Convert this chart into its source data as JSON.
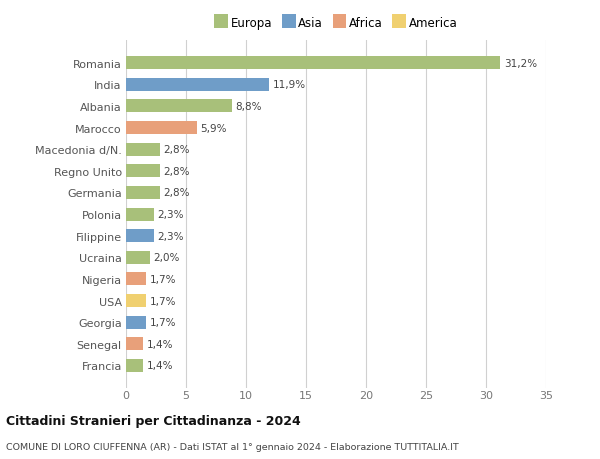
{
  "countries": [
    "Romania",
    "India",
    "Albania",
    "Marocco",
    "Macedonia d/N.",
    "Regno Unito",
    "Germania",
    "Polonia",
    "Filippine",
    "Ucraina",
    "Nigeria",
    "USA",
    "Georgia",
    "Senegal",
    "Francia"
  ],
  "values": [
    31.2,
    11.9,
    8.8,
    5.9,
    2.8,
    2.8,
    2.8,
    2.3,
    2.3,
    2.0,
    1.7,
    1.7,
    1.7,
    1.4,
    1.4
  ],
  "labels": [
    "31,2%",
    "11,9%",
    "8,8%",
    "5,9%",
    "2,8%",
    "2,8%",
    "2,8%",
    "2,3%",
    "2,3%",
    "2,0%",
    "1,7%",
    "1,7%",
    "1,7%",
    "1,4%",
    "1,4%"
  ],
  "continents": [
    "Europa",
    "Asia",
    "Europa",
    "Africa",
    "Europa",
    "Europa",
    "Europa",
    "Europa",
    "Asia",
    "Europa",
    "Africa",
    "America",
    "Asia",
    "Africa",
    "Europa"
  ],
  "colors": {
    "Europa": "#a8c07a",
    "Asia": "#6f9dc8",
    "Africa": "#e8a07a",
    "America": "#f0d070"
  },
  "legend_order": [
    "Europa",
    "Asia",
    "Africa",
    "America"
  ],
  "title": "Cittadini Stranieri per Cittadinanza - 2024",
  "subtitle": "COMUNE DI LORO CIUFFENNA (AR) - Dati ISTAT al 1° gennaio 2024 - Elaborazione TUTTITALIA.IT",
  "xlim": [
    0,
    35
  ],
  "xticks": [
    0,
    5,
    10,
    15,
    20,
    25,
    30,
    35
  ],
  "background_color": "#ffffff",
  "grid_color": "#d0d0d0"
}
